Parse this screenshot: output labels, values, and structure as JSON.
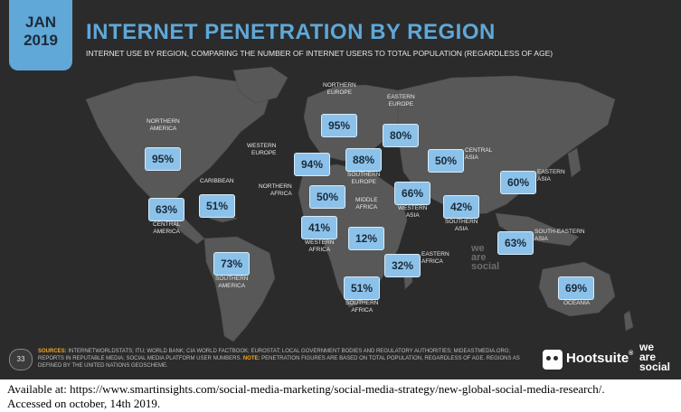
{
  "header": {
    "month": "JAN",
    "year": "2019",
    "title": "INTERNET PENETRATION BY REGION",
    "subtitle": "INTERNET USE BY REGION, COMPARING THE NUMBER OF INTERNET USERS TO TOTAL POPULATION (REGARDLESS OF AGE)"
  },
  "chart_data": {
    "type": "table",
    "unit": "%",
    "regions": [
      {
        "line1": "NORTHERN",
        "line2": "AMERICA",
        "value": 95,
        "label_text": "95%"
      },
      {
        "line1": "CARIBBEAN",
        "line2": "",
        "value": 51,
        "label_text": "51%"
      },
      {
        "line1": "CENTRAL",
        "line2": "AMERICA",
        "value": 63,
        "label_text": "63%"
      },
      {
        "line1": "SOUTHERN",
        "line2": "AMERICA",
        "value": 73,
        "label_text": "73%"
      },
      {
        "line1": "NORTHERN",
        "line2": "EUROPE",
        "value": 95,
        "label_text": "95%"
      },
      {
        "line1": "WESTERN",
        "line2": "EUROPE",
        "value": 94,
        "label_text": "94%"
      },
      {
        "line1": "SOUTHERN",
        "line2": "EUROPE",
        "value": 88,
        "label_text": "88%"
      },
      {
        "line1": "EASTERN",
        "line2": "EUROPE",
        "value": 80,
        "label_text": "80%"
      },
      {
        "line1": "NORTHERN",
        "line2": "AFRICA",
        "value": 50,
        "label_text": "50%"
      },
      {
        "line1": "WESTERN",
        "line2": "AFRICA",
        "value": 41,
        "label_text": "41%"
      },
      {
        "line1": "MIDDLE",
        "line2": "AFRICA",
        "value": 12,
        "label_text": "12%"
      },
      {
        "line1": "EASTERN",
        "line2": "AFRICA",
        "value": 32,
        "label_text": "32%"
      },
      {
        "line1": "SOUTHERN",
        "line2": "AFRICA",
        "value": 51,
        "label_text": "51%"
      },
      {
        "line1": "WESTERN",
        "line2": "ASIA",
        "value": 66,
        "label_text": "66%"
      },
      {
        "line1": "CENTRAL",
        "line2": "ASIA",
        "value": 50,
        "label_text": "50%"
      },
      {
        "line1": "SOUTHERN",
        "line2": "ASIA",
        "value": 42,
        "label_text": "42%"
      },
      {
        "line1": "EASTERN",
        "line2": "ASIA",
        "value": 60,
        "label_text": "60%"
      },
      {
        "line1": "SOUTH-EASTERN",
        "line2": "ASIA",
        "value": 63,
        "label_text": "63%"
      },
      {
        "line1": "OCEANIA",
        "line2": "",
        "value": 69,
        "label_text": "69%"
      }
    ]
  },
  "footer": {
    "page_number": "33",
    "sources_key": "SOURCES:",
    "sources_text": "INTERNETWORLDSTATS; ITU; WORLD BANK; CIA WORLD FACTBOOK; EUROSTAT; LOCAL GOVERNMENT BODIES AND REGULATORY AUTHORITIES; MIDEASTMEDIA.ORG; REPORTS IN REPUTABLE MEDIA; SOCIAL MEDIA PLATFORM USER NUMBERS.",
    "note_key": "NOTE:",
    "note_text": "PENETRATION FIGURES ARE BASED ON TOTAL POPULATION, REGARDLESS OF AGE. REGIONS AS DEFINED BY THE UNITED NATIONS GEOSCHEME.",
    "brand": "Hootsuite",
    "brand_tm": "®",
    "was_line1": "we",
    "was_line2": "are",
    "was_line3": "social"
  },
  "citation": {
    "line1": "Available at: https://www.smartinsights.com/social-media-marketing/social-media-strategy/new-global-social-media-research/.",
    "line2": " Accessed on october, 14th 2019."
  },
  "colors": {
    "background": "#2b2b2b",
    "accent": "#5fa8d8",
    "box": "#8cc2ea",
    "land": "#5a5a5a"
  }
}
